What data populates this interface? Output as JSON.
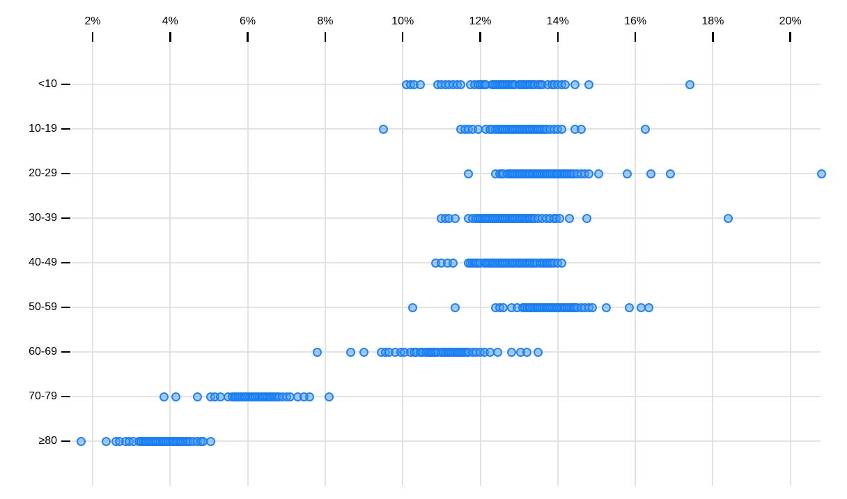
{
  "chart_data": {
    "type": "scatter",
    "variant": "horizontal-strip-plot",
    "title": "",
    "xlabel": "",
    "ylabel": "",
    "x_unit": "%",
    "xlim": [
      1.4,
      21.2
    ],
    "x_tick_values": [
      2,
      4,
      6,
      8,
      10,
      12,
      14,
      16,
      18,
      20
    ],
    "x_tick_labels": [
      "2%",
      "4%",
      "6%",
      "8%",
      "10%",
      "12%",
      "14%",
      "16%",
      "18%",
      "20%"
    ],
    "categories": [
      "<10",
      "10-19",
      "20-29",
      "30-39",
      "40-49",
      "50-59",
      "60-69",
      "70-79",
      "≥80"
    ],
    "grid": "both",
    "legend": "none",
    "colors": {
      "point_stroke": "#147df5",
      "point_fill_rgba": "rgba(80,155,245,0.5)",
      "gridline": "#e2e2e2",
      "axis_text": "#000000"
    },
    "series": [
      {
        "category": "<10",
        "values": [
          10.1,
          10.2,
          10.3,
          10.45,
          10.9,
          11.0,
          11.1,
          11.2,
          11.3,
          11.4,
          11.5,
          11.75,
          11.85,
          11.95,
          12.0,
          12.05,
          12.1,
          12.15,
          12.3,
          12.35,
          12.4,
          12.45,
          12.5,
          12.55,
          12.6,
          12.65,
          12.7,
          12.75,
          12.8,
          12.85,
          12.9,
          13.0,
          13.05,
          13.1,
          13.15,
          13.2,
          13.25,
          13.3,
          13.35,
          13.4,
          13.5,
          13.55,
          13.6,
          13.75,
          13.85,
          13.9,
          14.0,
          14.1,
          14.2,
          14.45,
          14.8,
          17.4
        ]
      },
      {
        "category": "10-19",
        "values": [
          9.5,
          11.5,
          11.6,
          11.7,
          11.8,
          11.95,
          12.15,
          12.25,
          12.3,
          12.4,
          12.45,
          12.5,
          12.55,
          12.6,
          12.65,
          12.7,
          12.75,
          12.8,
          12.85,
          12.9,
          12.95,
          13.0,
          13.05,
          13.1,
          13.15,
          13.2,
          13.25,
          13.3,
          13.35,
          13.4,
          13.45,
          13.5,
          13.55,
          13.6,
          13.65,
          13.7,
          13.8,
          13.9,
          14.0,
          14.1,
          14.45,
          14.6,
          16.25
        ]
      },
      {
        "category": "20-29",
        "values": [
          11.7,
          12.4,
          12.5,
          12.55,
          12.6,
          12.7,
          12.75,
          12.8,
          12.85,
          12.9,
          12.95,
          13.0,
          13.05,
          13.1,
          13.15,
          13.2,
          13.25,
          13.3,
          13.35,
          13.4,
          13.45,
          13.5,
          13.55,
          13.6,
          13.65,
          13.7,
          13.75,
          13.8,
          13.85,
          13.9,
          13.95,
          14.0,
          14.05,
          14.1,
          14.15,
          14.2,
          14.25,
          14.3,
          14.35,
          14.4,
          14.5,
          14.6,
          14.7,
          14.8,
          15.05,
          15.8,
          16.4,
          16.9,
          20.8
        ]
      },
      {
        "category": "30-39",
        "values": [
          11.0,
          11.1,
          11.2,
          11.35,
          11.7,
          11.8,
          11.9,
          11.95,
          12.0,
          12.05,
          12.1,
          12.15,
          12.2,
          12.25,
          12.3,
          12.35,
          12.4,
          12.45,
          12.5,
          12.55,
          12.6,
          12.65,
          12.7,
          12.75,
          12.8,
          12.85,
          12.9,
          12.95,
          13.0,
          13.05,
          13.1,
          13.15,
          13.2,
          13.25,
          13.3,
          13.35,
          13.4,
          13.5,
          13.6,
          13.7,
          13.8,
          13.9,
          13.95,
          14.05,
          14.3,
          14.75,
          18.4
        ]
      },
      {
        "category": "40-49",
        "values": [
          10.85,
          11.0,
          11.15,
          11.3,
          11.7,
          11.75,
          11.8,
          11.85,
          11.9,
          11.95,
          12.0,
          12.1,
          12.15,
          12.2,
          12.25,
          12.3,
          12.35,
          12.4,
          12.45,
          12.5,
          12.55,
          12.6,
          12.65,
          12.7,
          12.75,
          12.8,
          12.85,
          12.9,
          12.95,
          13.0,
          13.05,
          13.1,
          13.15,
          13.2,
          13.25,
          13.3,
          13.35,
          13.4,
          13.45,
          13.55,
          13.6,
          13.65,
          13.7,
          13.75,
          13.8,
          13.85,
          13.9,
          14.0,
          14.1
        ]
      },
      {
        "category": "50-59",
        "values": [
          10.25,
          11.35,
          12.4,
          12.5,
          12.6,
          12.8,
          12.95,
          13.1,
          13.15,
          13.2,
          13.25,
          13.3,
          13.35,
          13.4,
          13.45,
          13.5,
          13.55,
          13.6,
          13.65,
          13.7,
          13.75,
          13.8,
          13.85,
          13.9,
          13.95,
          14.0,
          14.05,
          14.1,
          14.15,
          14.2,
          14.25,
          14.3,
          14.35,
          14.4,
          14.45,
          14.5,
          14.6,
          14.7,
          14.8,
          14.9,
          15.25,
          15.85,
          16.15,
          16.35
        ]
      },
      {
        "category": "60-69",
        "values": [
          7.8,
          8.65,
          9.0,
          9.45,
          9.55,
          9.65,
          9.8,
          9.95,
          10.05,
          10.2,
          10.3,
          10.35,
          10.45,
          10.5,
          10.6,
          10.65,
          10.7,
          10.75,
          10.8,
          10.85,
          10.9,
          11.0,
          11.05,
          11.1,
          11.15,
          11.2,
          11.25,
          11.3,
          11.35,
          11.4,
          11.45,
          11.5,
          11.55,
          11.6,
          11.65,
          11.7,
          11.8,
          11.9,
          12.0,
          12.1,
          12.25,
          12.45,
          12.8,
          13.05,
          13.2,
          13.5
        ]
      },
      {
        "category": "70-79",
        "values": [
          3.85,
          4.15,
          4.7,
          5.05,
          5.15,
          5.3,
          5.5,
          5.6,
          5.65,
          5.7,
          5.75,
          5.8,
          5.85,
          5.9,
          5.95,
          6.0,
          6.05,
          6.1,
          6.15,
          6.2,
          6.25,
          6.3,
          6.35,
          6.4,
          6.45,
          6.5,
          6.55,
          6.6,
          6.65,
          6.7,
          6.75,
          6.8,
          6.9,
          7.0,
          7.1,
          7.3,
          7.45,
          7.6,
          8.1
        ]
      },
      {
        "category": "≥80",
        "values": [
          1.7,
          2.35,
          2.6,
          2.7,
          2.85,
          2.95,
          3.05,
          3.2,
          3.25,
          3.3,
          3.35,
          3.4,
          3.45,
          3.5,
          3.55,
          3.6,
          3.65,
          3.7,
          3.75,
          3.8,
          3.85,
          3.9,
          3.95,
          4.0,
          4.05,
          4.1,
          4.15,
          4.2,
          4.25,
          4.3,
          4.35,
          4.4,
          4.45,
          4.5,
          4.6,
          4.7,
          4.8,
          4.85,
          5.05
        ]
      }
    ]
  }
}
